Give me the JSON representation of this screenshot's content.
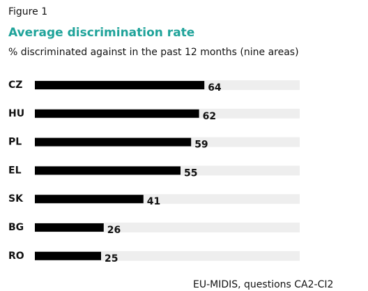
{
  "chart_data": {
    "type": "bar",
    "orientation": "horizontal",
    "label": "Figure 1",
    "title": "Average discrimination rate",
    "subtitle": "% discriminated against in the past 12 months (nine areas)",
    "source": "EU-MIDIS, questions CA2-CI2",
    "categories": [
      "CZ",
      "HU",
      "PL",
      "EL",
      "SK",
      "BG",
      "RO"
    ],
    "values": [
      64,
      62,
      59,
      55,
      41,
      26,
      25
    ],
    "color": "#000000",
    "track_color": "#eeeeee",
    "title_color": "#1fa39a",
    "xlim": [
      0,
      100
    ]
  }
}
